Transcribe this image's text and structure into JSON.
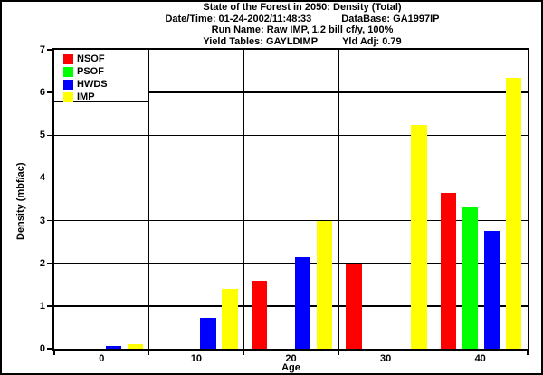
{
  "window": {
    "background": "#ffffff",
    "border_color": "#000000"
  },
  "header": {
    "title": "State of the Forest in 2050: Density (Total)",
    "datetime": "Date/Time: 01-24-2002/11:48:33",
    "database": "DataBase: GA1997IP",
    "run_name": "Run Name: Raw IMP, 1.2 bill cf/y, 100%",
    "yield_tables": "Yield Tables: GAYLDIMP",
    "yld_adj": "Yld Adj: 0.79"
  },
  "chart_data": {
    "type": "bar",
    "title": "State of the Forest in 2050: Density (Total)",
    "xlabel": "Age",
    "ylabel": "Density (mbf/ac)",
    "categories": [
      "0",
      "10",
      "20",
      "30",
      "40"
    ],
    "ylim": [
      0,
      7
    ],
    "y_ticks": [
      0,
      1,
      2,
      3,
      4,
      5,
      6,
      7
    ],
    "grid": true,
    "legend_position": "top-left inset box",
    "axis_color": "#000000",
    "series": [
      {
        "name": "NSOF",
        "color": "#ff0000",
        "values": [
          0,
          0,
          1.6,
          2.0,
          3.65
        ]
      },
      {
        "name": "PSOF",
        "color": "#00ff00",
        "values": [
          0,
          0,
          0,
          0,
          3.3
        ]
      },
      {
        "name": "HWDS",
        "color": "#0000ff",
        "values": [
          0.07,
          0.72,
          2.15,
          0,
          2.75
        ]
      },
      {
        "name": "IMP",
        "color": "#ffff00",
        "values": [
          0.1,
          1.4,
          3.0,
          5.25,
          6.35
        ]
      }
    ]
  }
}
